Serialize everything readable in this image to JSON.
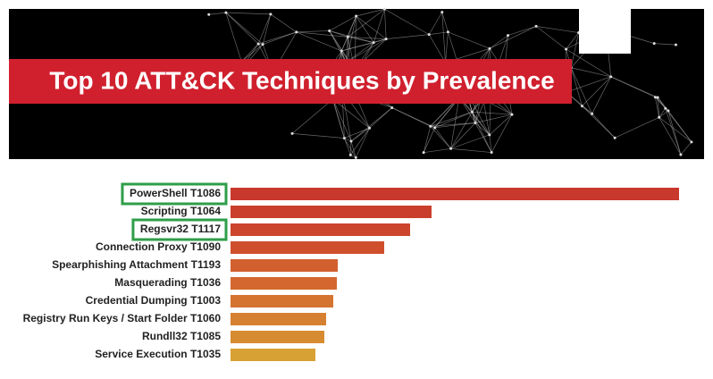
{
  "chart_data": {
    "type": "hbar",
    "title": "Top 10 ATT&CK Techniques by Prevalence",
    "categories": [
      "PowerShell T1086",
      "Scripting T1064",
      "Regsvr32 T1117",
      "Connection Proxy T1090",
      "Spearphishing Attachment T1193",
      "Masquerading T1036",
      "Credential Dumping T1003",
      "Registry Run Keys / Start Folder T1060",
      "Rundll32 T1085",
      "Service Execution T1035"
    ],
    "values": [
      502,
      225,
      201,
      172,
      120,
      119,
      115,
      107,
      105,
      95
    ],
    "colors": [
      "#c8382d",
      "#ca3f2c",
      "#cc452d",
      "#cf4f2d",
      "#d25f2e",
      "#d4672f",
      "#d57330",
      "#d68031",
      "#d78b31",
      "#d8a133"
    ],
    "highlighted": [
      0,
      2
    ],
    "highlight_color": "#2e9e48"
  }
}
